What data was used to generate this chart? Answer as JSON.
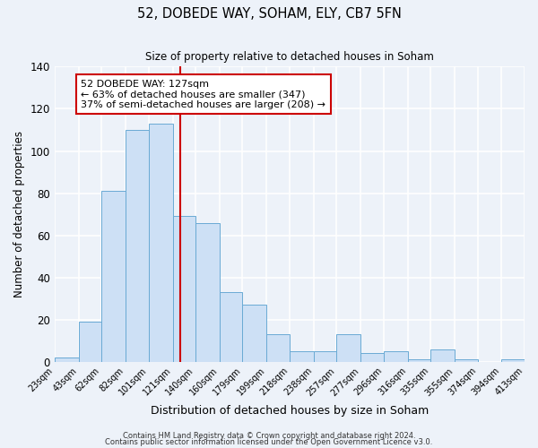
{
  "title": "52, DOBEDE WAY, SOHAM, ELY, CB7 5FN",
  "subtitle": "Size of property relative to detached houses in Soham",
  "xlabel": "Distribution of detached houses by size in Soham",
  "ylabel": "Number of detached properties",
  "bar_color": "#cde0f5",
  "bar_edge_color": "#6aaad4",
  "background_color": "#edf2f9",
  "grid_color": "#ffffff",
  "bins": [
    23,
    43,
    62,
    82,
    101,
    121,
    140,
    160,
    179,
    199,
    218,
    238,
    257,
    277,
    296,
    316,
    335,
    355,
    374,
    394,
    413
  ],
  "bin_labels": [
    "23sqm",
    "43sqm",
    "62sqm",
    "82sqm",
    "101sqm",
    "121sqm",
    "140sqm",
    "160sqm",
    "179sqm",
    "199sqm",
    "218sqm",
    "238sqm",
    "257sqm",
    "277sqm",
    "296sqm",
    "316sqm",
    "335sqm",
    "355sqm",
    "374sqm",
    "394sqm",
    "413sqm"
  ],
  "values": [
    2,
    19,
    81,
    110,
    113,
    69,
    66,
    33,
    27,
    13,
    5,
    5,
    13,
    4,
    5,
    1,
    6,
    1,
    0,
    1
  ],
  "ylim": [
    0,
    140
  ],
  "yticks": [
    0,
    20,
    40,
    60,
    80,
    100,
    120,
    140
  ],
  "property_value": 127,
  "vline_color": "#cc0000",
  "annotation_text": "52 DOBEDE WAY: 127sqm\n← 63% of detached houses are smaller (347)\n37% of semi-detached houses are larger (208) →",
  "annotation_box_color": "#ffffff",
  "annotation_box_edge": "#cc0000",
  "footer1": "Contains HM Land Registry data © Crown copyright and database right 2024.",
  "footer2": "Contains public sector information licensed under the Open Government Licence v3.0."
}
